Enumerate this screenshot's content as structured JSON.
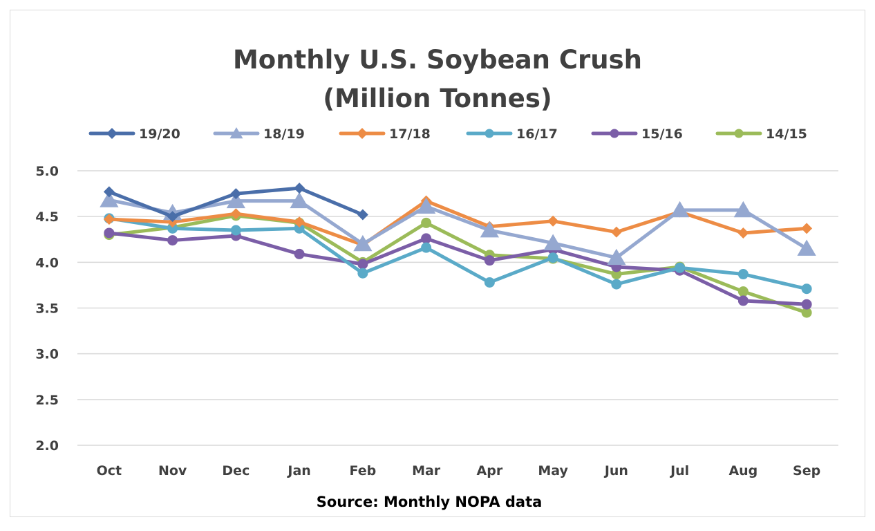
{
  "chart_data": {
    "type": "line",
    "title": "Monthly U.S. Soybean Crush",
    "subtitle": "(Million Tonnes)",
    "xlabel": "Source: Monthly NOPA data",
    "ylabel": "",
    "categories": [
      "Oct",
      "Nov",
      "Dec",
      "Jan",
      "Feb",
      "Mar",
      "Apr",
      "May",
      "Jun",
      "Jul",
      "Aug",
      "Sep"
    ],
    "ylim": [
      2.0,
      5.0
    ],
    "yticks": [
      "5.0",
      "4.5",
      "4.0",
      "3.5",
      "3.0",
      "2.5",
      "2.0"
    ],
    "grid": true,
    "legend_position": "top",
    "series": [
      {
        "name": "19/20",
        "color": "#4a6ea9",
        "marker": "diamond",
        "values": [
          4.77,
          4.5,
          4.75,
          4.81,
          4.52,
          null,
          null,
          null,
          null,
          null,
          null,
          null
        ]
      },
      {
        "name": "18/19",
        "color": "#95a8d0",
        "marker": "triangle",
        "values": [
          4.68,
          4.54,
          4.67,
          4.67,
          4.2,
          4.61,
          4.35,
          4.21,
          4.05,
          4.57,
          4.57,
          4.15
        ]
      },
      {
        "name": "17/18",
        "color": "#ed8c45",
        "marker": "diamond",
        "values": [
          4.47,
          4.44,
          4.53,
          4.44,
          4.19,
          4.67,
          4.39,
          4.45,
          4.33,
          4.55,
          4.32,
          4.37
        ]
      },
      {
        "name": "16/17",
        "color": "#5aaac8",
        "marker": "circle",
        "values": [
          4.48,
          4.37,
          4.35,
          4.37,
          3.88,
          4.16,
          3.78,
          4.05,
          3.76,
          3.94,
          3.87,
          3.71
        ]
      },
      {
        "name": "15/16",
        "color": "#7b5ea7",
        "marker": "circle",
        "values": [
          4.32,
          4.24,
          4.29,
          4.09,
          3.98,
          4.26,
          4.02,
          4.14,
          3.95,
          3.91,
          3.58,
          3.54
        ]
      },
      {
        "name": "14/15",
        "color": "#9bbb59",
        "marker": "circle",
        "values": [
          4.3,
          4.38,
          4.51,
          4.43,
          4.0,
          4.43,
          4.08,
          4.04,
          3.87,
          3.95,
          3.68,
          3.45
        ]
      }
    ]
  }
}
